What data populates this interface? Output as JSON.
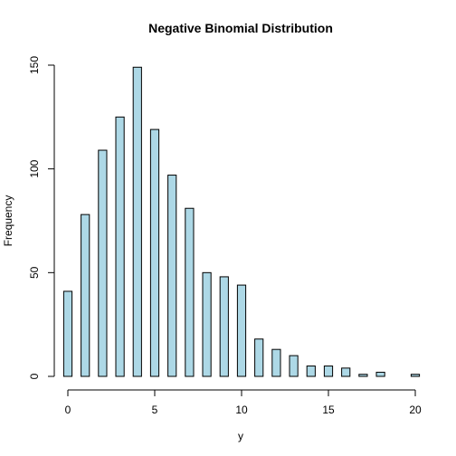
{
  "chart_data": {
    "type": "bar",
    "title": "Negative Binomial Distribution",
    "xlabel": "y",
    "ylabel": "Frequency",
    "x": [
      0,
      1,
      2,
      3,
      4,
      5,
      6,
      7,
      8,
      9,
      10,
      11,
      12,
      13,
      14,
      15,
      16,
      17,
      18,
      19,
      20
    ],
    "values": [
      41,
      78,
      109,
      125,
      149,
      119,
      97,
      81,
      50,
      48,
      44,
      18,
      13,
      10,
      5,
      5,
      4,
      1,
      2,
      0,
      1
    ],
    "xlim": [
      0,
      20
    ],
    "ylim": [
      0,
      150
    ],
    "xticks": [
      0,
      5,
      10,
      15,
      20
    ],
    "yticks": [
      0,
      50,
      100,
      150
    ],
    "bar_color": "#add8e6",
    "bar_edge_color": "#000000",
    "grid": false,
    "legend": "none"
  }
}
